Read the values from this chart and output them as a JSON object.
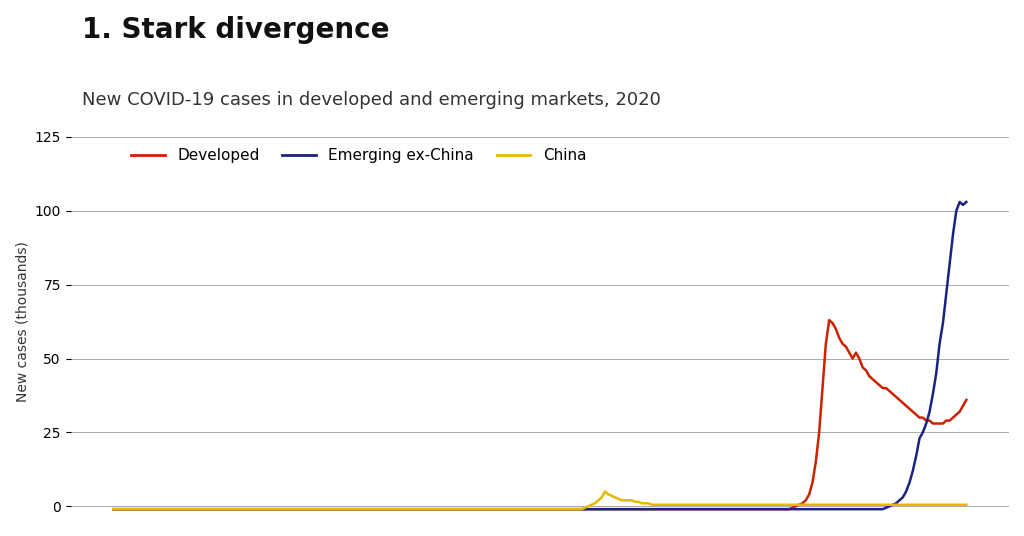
{
  "title": "1. Stark divergence",
  "subtitle": "New COVID-19 cases in developed and emerging markets, 2020",
  "ylabel": "New cases (thousands)",
  "ylim": [
    -5,
    130
  ],
  "yticks": [
    0,
    25,
    50,
    75,
    100,
    125
  ],
  "background_color": "#ffffff",
  "title_fontsize": 20,
  "subtitle_fontsize": 13,
  "legend_labels": [
    "Developed",
    "Emerging ex-China",
    "China"
  ],
  "line_colors": [
    "#cc2200",
    "#1a237e",
    "#e6b800"
  ],
  "developed": [
    -1,
    -1,
    -1,
    -1,
    -1,
    -1,
    -1,
    -1,
    -1,
    -1,
    -1,
    -1,
    -1,
    -1,
    -1,
    -1,
    -1,
    -1,
    -1,
    -1,
    -1,
    -1,
    -1,
    -1,
    -1,
    -1,
    -1,
    -1,
    -1,
    -1,
    -1,
    -1,
    -1,
    -1,
    -1,
    -1,
    -1,
    -1,
    -1,
    -1,
    -1,
    -1,
    -1,
    -1,
    -1,
    -1,
    -1,
    -1,
    -1,
    -1,
    -1,
    -1,
    -1,
    -1,
    -1,
    -1,
    -1,
    -1,
    -1,
    -1,
    -1,
    -1,
    -1,
    -1,
    -1,
    -1,
    -1,
    -1,
    -1,
    -1,
    -1,
    -1,
    -1,
    -1,
    -1,
    -1,
    -1,
    -1,
    -1,
    -1,
    -1,
    -1,
    -1,
    -1,
    -1,
    -1,
    -1,
    -1,
    -1,
    -1,
    -1,
    -1,
    -1,
    -1,
    -1,
    -1,
    -1,
    -1,
    -1,
    -1,
    -1,
    -1,
    -1,
    -1,
    -1,
    -1,
    -1,
    -1,
    -1,
    -1,
    -1,
    -1,
    -1,
    -1,
    -1,
    -1,
    -1,
    -1,
    -1,
    -1,
    -1,
    -1,
    -1,
    -1,
    -1,
    -1,
    -1,
    -1,
    -1,
    -1,
    -1,
    -1,
    -1,
    -1,
    -1,
    -1,
    -1,
    -1,
    -1,
    -1,
    -1,
    -1,
    -1,
    -1,
    -1,
    -1,
    -1,
    -1,
    -1,
    -1,
    -1,
    -1,
    -1,
    -1,
    -1,
    -1,
    -1,
    -1,
    -1,
    -1,
    -1,
    -1,
    -1,
    -1,
    -1,
    -1,
    -1,
    -1,
    -1,
    -1,
    -1,
    -1,
    -1,
    -1,
    -1,
    -1,
    -1,
    -1,
    -1,
    -1,
    -1,
    -1,
    -1,
    -1,
    -1,
    -1,
    -1,
    -1,
    -1,
    -1,
    -1,
    -1,
    -1,
    -1,
    -1,
    -1,
    -1,
    -1,
    -1,
    -1,
    -1,
    -1,
    -1,
    -0.5,
    0,
    0.5,
    1,
    2,
    4,
    8,
    15,
    25,
    40,
    55,
    63,
    62,
    60,
    57,
    55,
    54,
    52,
    50,
    52,
    50,
    47,
    46,
    44,
    43,
    42,
    41,
    40,
    40,
    39,
    38,
    37,
    36,
    35,
    34,
    33,
    32,
    31,
    30,
    30,
    29,
    29,
    28,
    28,
    28,
    28,
    29,
    29,
    30,
    31,
    32,
    34,
    36
  ],
  "emerging": [
    -1,
    -1,
    -1,
    -1,
    -1,
    -1,
    -1,
    -1,
    -1,
    -1,
    -1,
    -1,
    -1,
    -1,
    -1,
    -1,
    -1,
    -1,
    -1,
    -1,
    -1,
    -1,
    -1,
    -1,
    -1,
    -1,
    -1,
    -1,
    -1,
    -1,
    -1,
    -1,
    -1,
    -1,
    -1,
    -1,
    -1,
    -1,
    -1,
    -1,
    -1,
    -1,
    -1,
    -1,
    -1,
    -1,
    -1,
    -1,
    -1,
    -1,
    -1,
    -1,
    -1,
    -1,
    -1,
    -1,
    -1,
    -1,
    -1,
    -1,
    -1,
    -1,
    -1,
    -1,
    -1,
    -1,
    -1,
    -1,
    -1,
    -1,
    -1,
    -1,
    -1,
    -1,
    -1,
    -1,
    -1,
    -1,
    -1,
    -1,
    -1,
    -1,
    -1,
    -1,
    -1,
    -1,
    -1,
    -1,
    -1,
    -1,
    -1,
    -1,
    -1,
    -1,
    -1,
    -1,
    -1,
    -1,
    -1,
    -1,
    -1,
    -1,
    -1,
    -1,
    -1,
    -1,
    -1,
    -1,
    -1,
    -1,
    -1,
    -1,
    -1,
    -1,
    -1,
    -1,
    -1,
    -1,
    -1,
    -1,
    -1,
    -1,
    -1,
    -1,
    -1,
    -1,
    -1,
    -1,
    -1,
    -1,
    -1,
    -1,
    -1,
    -1,
    -1,
    -1,
    -1,
    -1,
    -1,
    -1,
    -1,
    -1,
    -1,
    -1,
    -1,
    -1,
    -1,
    -1,
    -1,
    -1,
    -1,
    -1,
    -1,
    -1,
    -1,
    -1,
    -1,
    -1,
    -1,
    -1,
    -1,
    -1,
    -1,
    -1,
    -1,
    -1,
    -1,
    -1,
    -1,
    -1,
    -1,
    -1,
    -1,
    -1,
    -1,
    -1,
    -1,
    -1,
    -1,
    -1,
    -1,
    -1,
    -1,
    -1,
    -1,
    -1,
    -1,
    -1,
    -1,
    -1,
    -1,
    -1,
    -1,
    -1,
    -1,
    -1,
    -1,
    -1,
    -1,
    -1,
    -1,
    -1,
    -1,
    -1,
    -1,
    -1,
    -1,
    -1,
    -1,
    -1,
    -1,
    -1,
    -1,
    -1,
    -1,
    -1,
    -1,
    -1,
    -1,
    -1,
    -1,
    -1,
    -1,
    -1,
    -1,
    -1,
    -1,
    -1,
    -1,
    -1,
    -1,
    -0.5,
    0,
    0.5,
    1,
    2,
    3,
    5,
    8,
    12,
    17,
    23,
    25,
    28,
    32,
    38,
    45,
    55,
    62,
    72,
    82,
    92,
    100,
    103,
    102,
    103
  ],
  "china": [
    -1,
    -1,
    -1,
    -1,
    -1,
    -1,
    -1,
    -1,
    -1,
    -1,
    -1,
    -1,
    -1,
    -1,
    -1,
    -1,
    -1,
    -1,
    -1,
    -1,
    -1,
    -1,
    -1,
    -1,
    -1,
    -1,
    -1,
    -1,
    -1,
    -1,
    -1,
    -1,
    -1,
    -1,
    -1,
    -1,
    -1,
    -1,
    -1,
    -1,
    -1,
    -1,
    -1,
    -1,
    -1,
    -1,
    -1,
    -1,
    -1,
    -1,
    -1,
    -1,
    -1,
    -1,
    -1,
    -1,
    -1,
    -1,
    -1,
    -1,
    -1,
    -1,
    -1,
    -1,
    -1,
    -1,
    -1,
    -1,
    -1,
    -1,
    -1,
    -1,
    -1,
    -1,
    -1,
    -1,
    -1,
    -1,
    -1,
    -1,
    -1,
    -1,
    -1,
    -1,
    -1,
    -1,
    -1,
    -1,
    -1,
    -1,
    -1,
    -1,
    -1,
    -1,
    -1,
    -1,
    -1,
    -1,
    -1,
    -1,
    -1,
    -1,
    -1,
    -1,
    -1,
    -1,
    -1,
    -1,
    -1,
    -1,
    -1,
    -1,
    -1,
    -1,
    -1,
    -1,
    -1,
    -1,
    -1,
    -1,
    -1,
    -1,
    -1,
    -1,
    -1,
    -1,
    -1,
    -1,
    -1,
    -1,
    -1,
    -1,
    -1,
    -1,
    -1,
    -1,
    -1,
    -1,
    -1,
    -1,
    -1,
    -0.5,
    0,
    0.5,
    1,
    2,
    3,
    5,
    4,
    3.5,
    3,
    2.5,
    2,
    2,
    2,
    2,
    1.5,
    1.5,
    1,
    1,
    1,
    0.5,
    0.5,
    0.5,
    0.5,
    0.5,
    0.5,
    0.5,
    0.5,
    0.5,
    0.5,
    0.5,
    0.5,
    0.5,
    0.5,
    0.5,
    0.5,
    0.5,
    0.5,
    0.5,
    0.5,
    0.5,
    0.5,
    0.5,
    0.5,
    0.5,
    0.5,
    0.5,
    0.5,
    0.5,
    0.5,
    0.5,
    0.5,
    0.5,
    0.5,
    0.5,
    0.5,
    0.5,
    0.5,
    0.5,
    0.5,
    0.5,
    0.5,
    0.5,
    0.5,
    0.5,
    0.5,
    0.5,
    0.5,
    0.5,
    0.5,
    0.5,
    0.5,
    0.5,
    0.5,
    0.5,
    0.5,
    0.5,
    0.5,
    0.5,
    0.5,
    0.5,
    0.5,
    0.5,
    0.5,
    0.5,
    0.5,
    0.5,
    0.5,
    0.5,
    0.5,
    0.5,
    0.5,
    0.5,
    0.5,
    0.5,
    0.5,
    0.5,
    0.5,
    0.5,
    0.5,
    0.5,
    0.5,
    0.5,
    0.5,
    0.5,
    0.5,
    0.5,
    0.5,
    0.5,
    0.5,
    0.5,
    0.5,
    0.5,
    0.5,
    0.5
  ]
}
